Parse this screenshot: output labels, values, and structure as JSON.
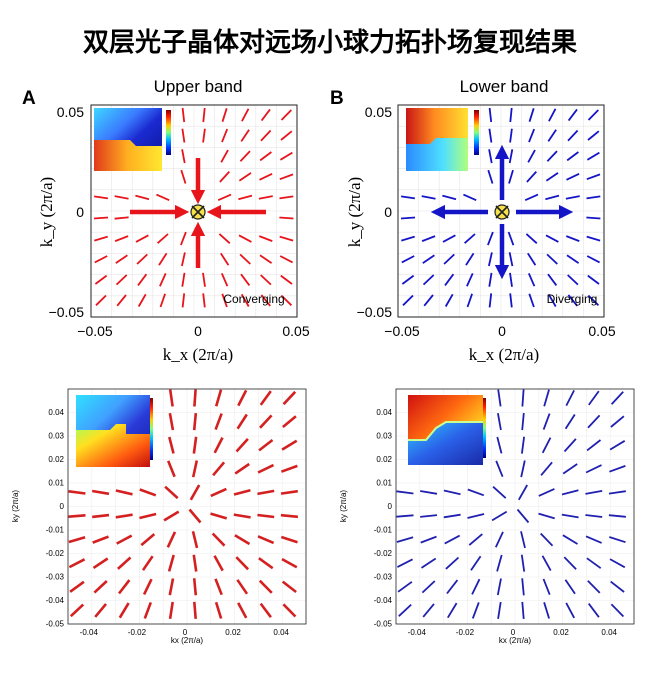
{
  "title": "双层光子晶体对远场小球力拓扑场复现结果",
  "chart_data": [
    {
      "type": "vector_field",
      "panel_label": "A",
      "title": "Upper band",
      "xlabel": "k_x (2π/a)",
      "ylabel": "k_y (2π/a)",
      "xlim": [
        -0.05,
        0.05
      ],
      "ylim": [
        -0.05,
        0.05
      ],
      "xticks": [
        "−0.05",
        "0",
        "0.05"
      ],
      "yticks": [
        "0.05",
        "0",
        "−0.05"
      ],
      "annotation": "Converging",
      "arrows": "inward",
      "color": "#e8141b",
      "inset": "phase map with colorbar"
    },
    {
      "type": "vector_field",
      "panel_label": "B",
      "title": "Lower band",
      "xlabel": "k_x (2π/a)",
      "ylabel": "k_y (2π/a)",
      "xlim": [
        -0.05,
        0.05
      ],
      "ylim": [
        -0.05,
        0.05
      ],
      "xticks": [
        "−0.05",
        "0",
        "0.05"
      ],
      "yticks": [
        "0.05",
        "0",
        "−0.05"
      ],
      "annotation": "Diverging",
      "arrows": "outward",
      "color": "#1515c8",
      "inset": "phase map with colorbar"
    },
    {
      "type": "vector_field",
      "xlabel": "kx (2π/a)",
      "ylabel": "ky (2π/a)",
      "xlim": [
        -0.05,
        0.05
      ],
      "ylim": [
        -0.05,
        0.05
      ],
      "xticks": [
        "-0.04",
        "-0.02",
        "0",
        "0.02",
        "0.04"
      ],
      "yticks": [
        "0.04",
        "0.03",
        "0.02",
        "0.01",
        "0",
        "-0.01",
        "-0.02",
        "-0.03",
        "-0.04",
        "-0.05"
      ],
      "color": "#d42020",
      "inset": "phase map"
    },
    {
      "type": "vector_field",
      "xlabel": "kx (2π/a)",
      "ylabel": "ky (2π/a)",
      "xlim": [
        -0.05,
        0.05
      ],
      "ylim": [
        -0.05,
        0.05
      ],
      "xticks": [
        "-0.04",
        "-0.02",
        "0",
        "0.02",
        "0.04"
      ],
      "yticks": [
        "0.04",
        "0.03",
        "0.02",
        "0.01",
        "0",
        "-0.01",
        "-0.02",
        "-0.03",
        "-0.04",
        "-0.05"
      ],
      "color": "#2020b0",
      "inset": "phase map"
    }
  ]
}
